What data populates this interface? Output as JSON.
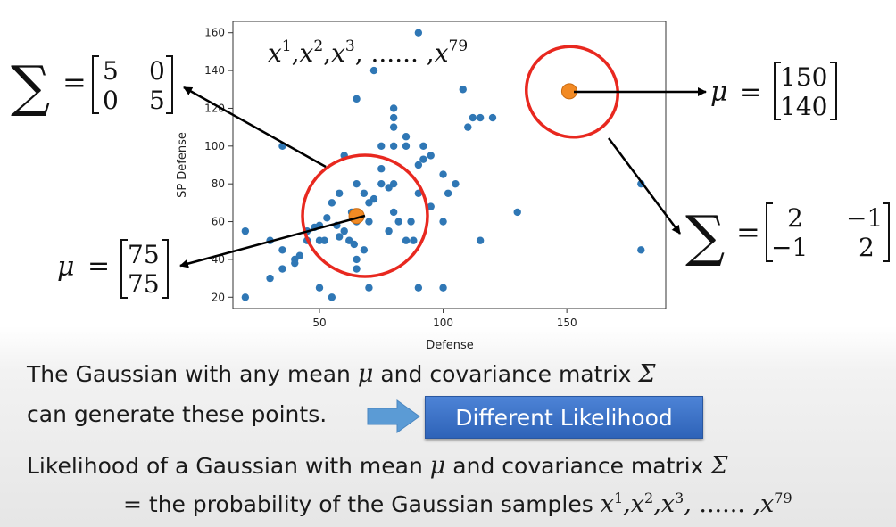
{
  "chart_data": {
    "type": "scatter",
    "xlabel": "Defense",
    "ylabel": "SP Defense",
    "xlim": [
      15,
      190
    ],
    "ylim": [
      14,
      166
    ],
    "xticks": [
      50,
      100,
      150
    ],
    "yticks": [
      20,
      40,
      60,
      80,
      100,
      120,
      140,
      160
    ],
    "grid": false,
    "legend": "none",
    "series": [
      {
        "points": [
          [
            20,
            55
          ],
          [
            20,
            20
          ],
          [
            30,
            50
          ],
          [
            30,
            30
          ],
          [
            35,
            35
          ],
          [
            35,
            45
          ],
          [
            40,
            40
          ],
          [
            42,
            42
          ],
          [
            45,
            55
          ],
          [
            45,
            50
          ],
          [
            48,
            57
          ],
          [
            50,
            50
          ],
          [
            50,
            25
          ],
          [
            52,
            50
          ],
          [
            53,
            62
          ],
          [
            55,
            20
          ],
          [
            55,
            70
          ],
          [
            57,
            58
          ],
          [
            58,
            75
          ],
          [
            60,
            55
          ],
          [
            62,
            50
          ],
          [
            63,
            65
          ],
          [
            64,
            48
          ],
          [
            65,
            80
          ],
          [
            65,
            60
          ],
          [
            65,
            40
          ],
          [
            65,
            35
          ],
          [
            68,
            75
          ],
          [
            70,
            70
          ],
          [
            70,
            60
          ],
          [
            70,
            25
          ],
          [
            72,
            72
          ],
          [
            75,
            80
          ],
          [
            75,
            100
          ],
          [
            78,
            78
          ],
          [
            78,
            55
          ],
          [
            80,
            80
          ],
          [
            80,
            100
          ],
          [
            80,
            110
          ],
          [
            80,
            65
          ],
          [
            82,
            60
          ],
          [
            85,
            100
          ],
          [
            85,
            50
          ],
          [
            87,
            60
          ],
          [
            88,
            50
          ],
          [
            90,
            90
          ],
          [
            90,
            75
          ],
          [
            90,
            25
          ],
          [
            90,
            160
          ],
          [
            92,
            100
          ],
          [
            95,
            95
          ],
          [
            100,
            85
          ],
          [
            100,
            60
          ],
          [
            100,
            25
          ],
          [
            102,
            75
          ],
          [
            105,
            80
          ],
          [
            108,
            130
          ],
          [
            110,
            110
          ],
          [
            112,
            115
          ],
          [
            115,
            50
          ],
          [
            115,
            115
          ],
          [
            120,
            115
          ],
          [
            130,
            65
          ],
          [
            65,
            125
          ],
          [
            72,
            140
          ],
          [
            80,
            120
          ],
          [
            80,
            115
          ],
          [
            85,
            105
          ],
          [
            60,
            95
          ],
          [
            75,
            88
          ],
          [
            95,
            68
          ],
          [
            50,
            58
          ],
          [
            58,
            52
          ],
          [
            68,
            45
          ],
          [
            92,
            93
          ],
          [
            35,
            100
          ],
          [
            40,
            38
          ],
          [
            180,
            45
          ],
          [
            180,
            80
          ]
        ],
        "color": "#2f77b5"
      }
    ],
    "means": [
      {
        "x": 65,
        "y": 63,
        "color": "#f28a24"
      },
      {
        "x": 151,
        "y": 129,
        "color": "#f28a24"
      }
    ],
    "ellipse_color": "#e8281f"
  },
  "annotations": {
    "samples": {
      "base": "x",
      "sups": [
        "1",
        "2",
        "3"
      ],
      "dots": "......",
      "last_sup": "79"
    },
    "sigma1": {
      "sym": "∑",
      "eq": "=",
      "m": [
        "5",
        "0",
        "0",
        "5"
      ]
    },
    "mu1": {
      "sym": "μ",
      "eq": "=",
      "v": [
        "75",
        "75"
      ]
    },
    "mu2": {
      "sym": "μ",
      "eq": "=",
      "v": [
        "150",
        "140"
      ]
    },
    "sigma2": {
      "sym": "∑",
      "eq": "=",
      "m": [
        "2",
        "−1",
        "−1",
        "2"
      ]
    }
  },
  "text": {
    "line1_a": "The Gaussian with any mean",
    "line1_mu": "μ",
    "line1_b": "and covariance matrix",
    "line1_sigma": "Σ",
    "line2": "can generate these points.",
    "button": "Different Likelihood",
    "line3_a": "Likelihood of a Gaussian with mean",
    "line3_mu": "μ",
    "line3_b": "and covariance matrix",
    "line3_sigma": "Σ",
    "line4_a": "= the probability of the Gaussian samples",
    "line4_x": "x",
    "line4_dots": "......",
    "line4_last": "79"
  },
  "colors": {
    "arrow_blue": "#5b9bd5",
    "button_bg": "#3b73c8"
  }
}
